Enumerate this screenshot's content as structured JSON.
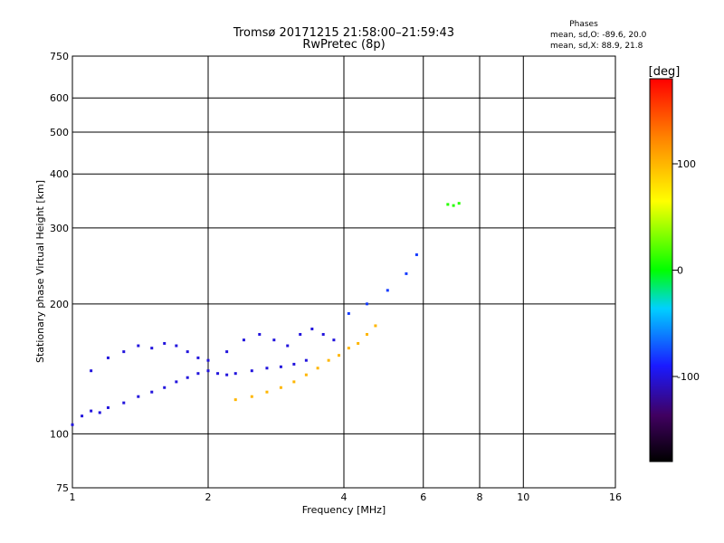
{
  "chart_data": {
    "type": "scatter",
    "title_line1": "Tromsø 20171215 21:58:00–21:59:43",
    "title_line2": "RwPretec (8p)",
    "legend": {
      "heading": "Phases",
      "line_o": "mean, sd,O: -89.6, 20.0",
      "line_x": "mean, sd,X:  88.9, 21.8"
    },
    "xlabel": "Frequency [MHz]",
    "ylabel": "Stationary phase Virtual Height [km]",
    "x_scale": "log",
    "y_scale": "log",
    "xlim": [
      1,
      16
    ],
    "ylim": [
      75,
      750
    ],
    "x_ticks": [
      1,
      2,
      4,
      6,
      8,
      10,
      16
    ],
    "x_tick_labels": [
      "1",
      "2",
      "4",
      "6",
      "8",
      "10",
      "16"
    ],
    "y_ticks": [
      75,
      100,
      200,
      300,
      400,
      500,
      600,
      750
    ],
    "y_tick_labels": [
      "75",
      "100",
      "200",
      "300",
      "400",
      "500",
      "600",
      "750"
    ],
    "grid": true,
    "colorbar": {
      "title": "[deg]",
      "range": [
        -180,
        180
      ],
      "ticks": [
        100,
        0,
        -100
      ],
      "tick_labels": [
        "100",
        "0",
        "-100"
      ]
    },
    "series": [
      {
        "color_phase": -100,
        "note": "O-mode trace (blue)",
        "x": [
          1.0,
          1.05,
          1.1,
          1.15,
          1.2,
          1.3,
          1.4,
          1.5,
          1.6,
          1.7,
          1.8,
          1.9,
          2.0,
          2.1,
          2.2,
          2.3,
          2.5,
          2.7,
          2.9,
          3.1,
          3.3
        ],
        "y": [
          105,
          110,
          113,
          112,
          115,
          118,
          122,
          125,
          128,
          132,
          135,
          138,
          140,
          138,
          137,
          138,
          140,
          142,
          143,
          145,
          148
        ]
      },
      {
        "color_phase": -100,
        "note": "O-mode upper trace (blue)",
        "x": [
          1.1,
          1.2,
          1.3,
          1.4,
          1.5,
          1.6,
          1.7,
          1.8,
          1.9,
          2.0,
          2.2,
          2.4,
          2.6,
          2.8,
          3.0,
          3.2,
          3.4,
          3.6,
          3.8
        ],
        "y": [
          140,
          150,
          155,
          160,
          158,
          162,
          160,
          155,
          150,
          148,
          155,
          165,
          170,
          165,
          160,
          170,
          175,
          170,
          165
        ]
      },
      {
        "color_phase": 100,
        "note": "X-mode trace (yellow/green)",
        "x": [
          2.3,
          2.5,
          2.7,
          2.9,
          3.1,
          3.3,
          3.5,
          3.7,
          3.9,
          4.1,
          4.3,
          4.5,
          4.7
        ],
        "y": [
          120,
          122,
          125,
          128,
          132,
          137,
          142,
          148,
          152,
          158,
          162,
          170,
          178
        ]
      },
      {
        "color_phase": -80,
        "note": "F-region trace",
        "x": [
          4.1,
          4.5,
          5.0,
          5.5,
          5.8
        ],
        "y": [
          190,
          200,
          215,
          235,
          260
        ]
      },
      {
        "color_phase": 10,
        "note": "sparse points",
        "x": [
          6.8,
          7.0,
          7.2
        ],
        "y": [
          340,
          338,
          342
        ]
      }
    ]
  }
}
